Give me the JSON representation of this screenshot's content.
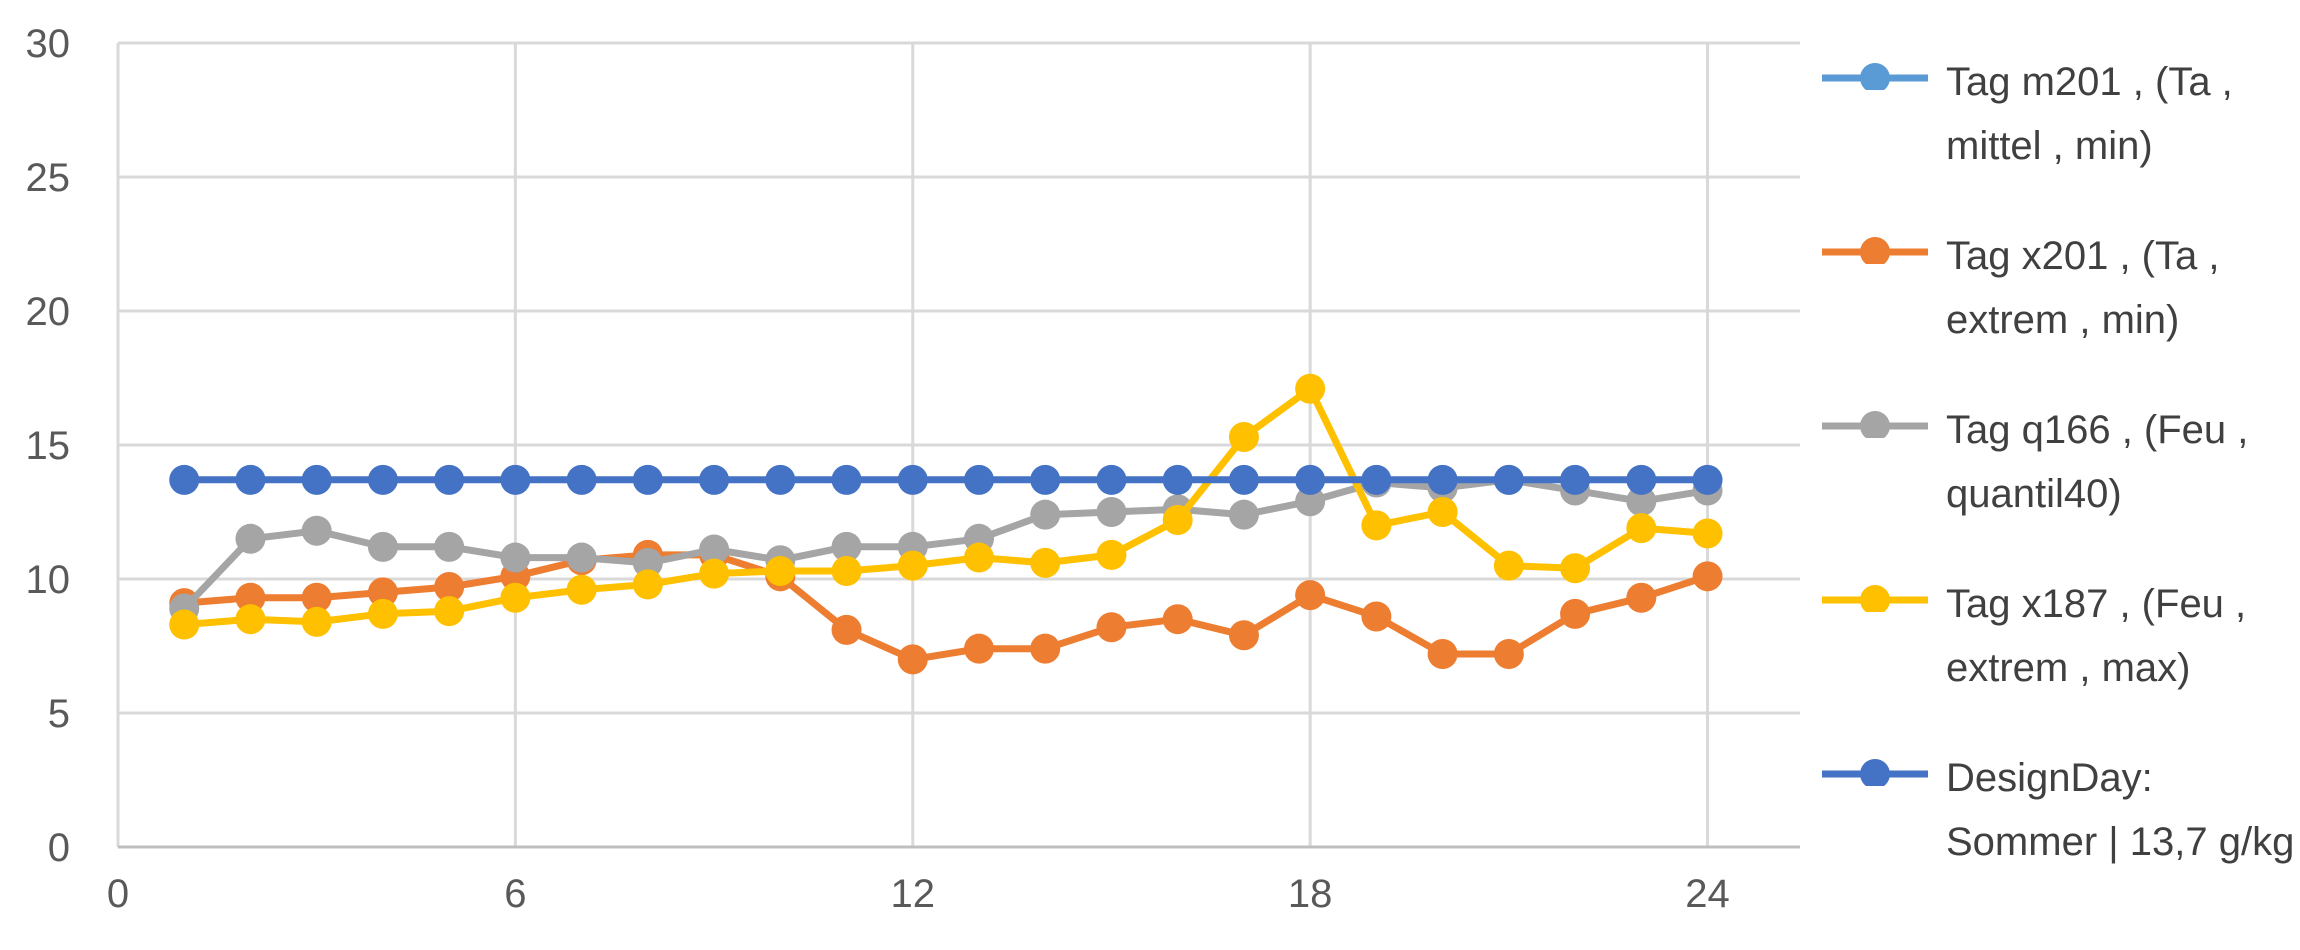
{
  "chart_data": {
    "type": "line",
    "title": "",
    "xlabel": "",
    "ylabel": "",
    "xlim": [
      0,
      26
    ],
    "ylim": [
      0,
      30
    ],
    "xticks": [
      0,
      6,
      12,
      18,
      24
    ],
    "yticks": [
      0,
      5,
      10,
      15,
      20,
      25,
      30
    ],
    "x": [
      1,
      2,
      3,
      4,
      5,
      6,
      7,
      8,
      9,
      10,
      11,
      12,
      13,
      14,
      15,
      16,
      17,
      18,
      19,
      20,
      21,
      22,
      23,
      24
    ],
    "grid": true,
    "legend_position": "right",
    "series": [
      {
        "name": "Tag m201 , (Ta , mittel , min)",
        "color": "#5B9BD5",
        "legend_only": true,
        "values": [
          13.7,
          13.7,
          13.7,
          13.7,
          13.7,
          13.7,
          13.7,
          13.7,
          13.7,
          13.7,
          13.7,
          13.7,
          13.7,
          13.7,
          13.7,
          13.7,
          13.7,
          13.7,
          13.7,
          13.7,
          13.7,
          13.7,
          13.7,
          13.7
        ]
      },
      {
        "name": "Tag x201 , (Ta , extrem , min)",
        "color": "#ED7D31",
        "values": [
          9.1,
          9.3,
          9.3,
          9.5,
          9.7,
          10.1,
          10.7,
          10.9,
          10.9,
          10.1,
          8.1,
          7.0,
          7.4,
          7.4,
          8.2,
          8.5,
          7.9,
          9.4,
          8.6,
          7.2,
          7.2,
          8.7,
          9.3,
          10.1
        ]
      },
      {
        "name": "Tag q166 , (Feu , quantil40)",
        "color": "#A5A5A5",
        "values": [
          8.9,
          11.5,
          11.8,
          11.2,
          11.2,
          10.8,
          10.8,
          10.6,
          11.1,
          10.7,
          11.2,
          11.2,
          11.5,
          12.4,
          12.5,
          12.6,
          12.4,
          12.9,
          13.6,
          13.4,
          13.7,
          13.3,
          12.9,
          13.3
        ]
      },
      {
        "name": "Tag x187 , (Feu , extrem , max)",
        "color": "#FFC000",
        "values": [
          8.3,
          8.5,
          8.4,
          8.7,
          8.8,
          9.3,
          9.6,
          9.8,
          10.2,
          10.3,
          10.3,
          10.5,
          10.8,
          10.6,
          10.9,
          12.2,
          15.3,
          17.1,
          12.0,
          12.5,
          10.5,
          10.4,
          11.9,
          11.7
        ]
      },
      {
        "name": "DesignDay: Sommer | 13,7 g/kg",
        "color": "#4472C4",
        "values": [
          13.7,
          13.7,
          13.7,
          13.7,
          13.7,
          13.7,
          13.7,
          13.7,
          13.7,
          13.7,
          13.7,
          13.7,
          13.7,
          13.7,
          13.7,
          13.7,
          13.7,
          13.7,
          13.7,
          13.7,
          13.7,
          13.7,
          13.7,
          13.7
        ]
      }
    ]
  }
}
